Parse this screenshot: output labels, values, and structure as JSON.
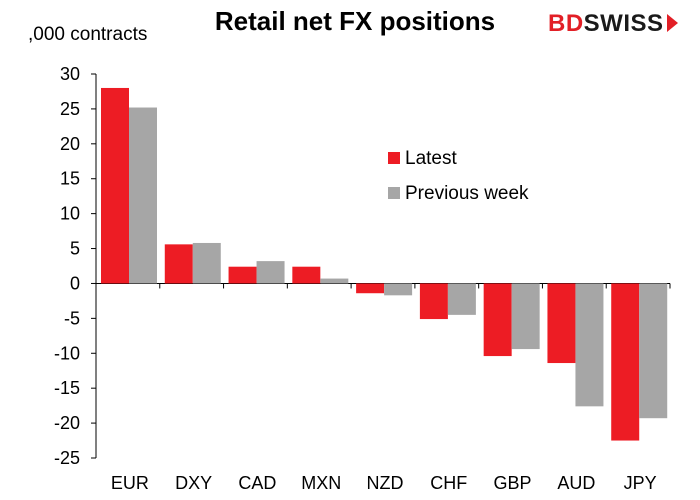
{
  "chart_data": {
    "type": "bar",
    "title": "Retail net FX positions",
    "ylabel": ",000 contracts",
    "xlabel": "",
    "ylim": [
      -25,
      30
    ],
    "yticks": [
      30,
      25,
      20,
      15,
      10,
      5,
      0,
      -5,
      -10,
      -15,
      -20,
      -25
    ],
    "categories": [
      "EUR",
      "DXY",
      "CAD",
      "MXN",
      "NZD",
      "CHF",
      "GBP",
      "AUD",
      "JPY"
    ],
    "series": [
      {
        "name": "Latest",
        "color": "#ed1c24",
        "values": [
          28.0,
          5.6,
          2.4,
          2.4,
          -1.4,
          -5.1,
          -10.4,
          -11.4,
          -22.5
        ]
      },
      {
        "name": "Previous week",
        "color": "#a6a6a6",
        "values": [
          25.2,
          5.8,
          3.2,
          0.7,
          -1.7,
          -4.5,
          -9.4,
          -17.6,
          -19.3
        ]
      }
    ],
    "legend_position": "right",
    "grid": false
  },
  "logo": {
    "part1": "BD",
    "part2": "SWISS"
  }
}
